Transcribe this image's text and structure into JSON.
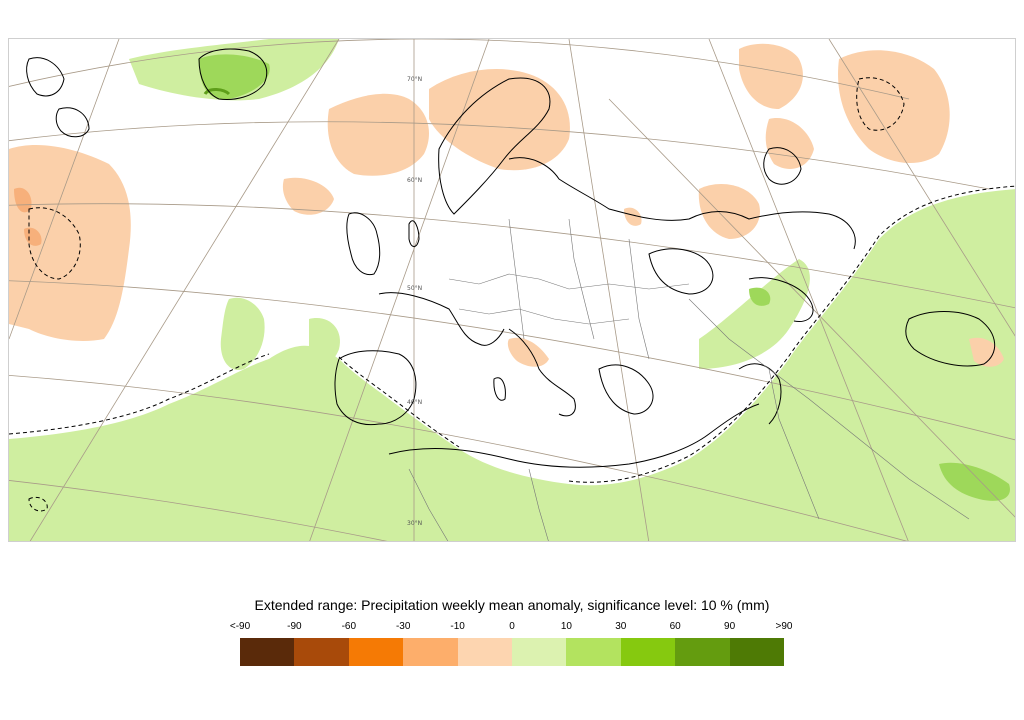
{
  "legend": {
    "title": "Extended range: Precipitation weekly mean anomaly, significance level: 10 % (mm)",
    "tick_labels": [
      "<-90",
      "-90",
      "-60",
      "-30",
      "-10",
      "0",
      "10",
      "30",
      "60",
      "90",
      ">90"
    ],
    "colors": [
      "#5a2a0a",
      "#a84a0a",
      "#f57a05",
      "#fdae6b",
      "#fdd5b0",
      "#dcf2b0",
      "#b3e35f",
      "#86c90f",
      "#649c0f",
      "#4e7a05"
    ]
  },
  "map": {
    "latitude_labels": [
      "70°N",
      "60°N",
      "50°N",
      "40°N",
      "30°N"
    ],
    "anomaly_colors": {
      "positive_light": "#cfeea0",
      "positive_medium": "#9ed85a",
      "positive_dark": "#5e9e1a",
      "negative_light": "#fbd0aa",
      "negative_medium": "#f7b07b"
    }
  }
}
